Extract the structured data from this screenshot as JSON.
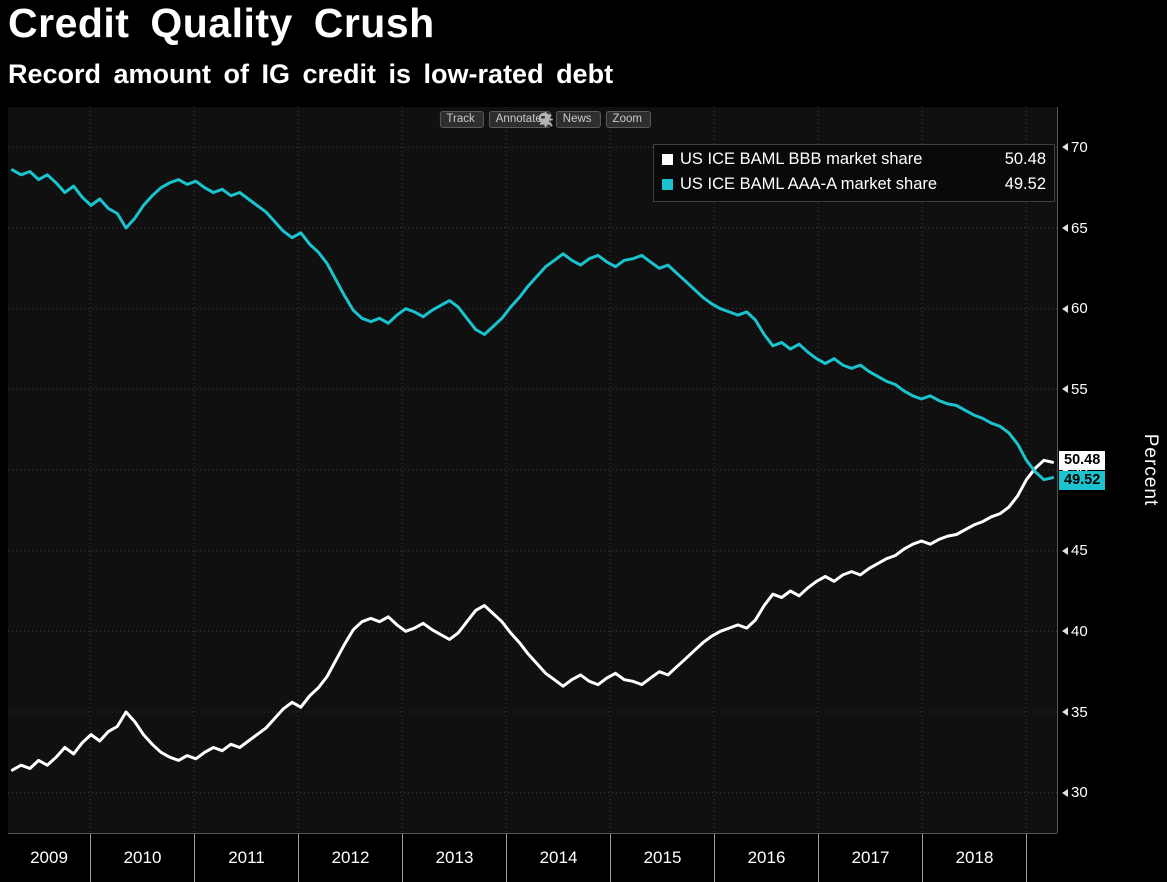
{
  "header": {
    "title": "Credit Quality Crush",
    "subtitle": "Record amount of IG credit is low-rated debt"
  },
  "toolbar": {
    "buttons": [
      {
        "label": "Track",
        "icon": "track-crosshair-icon"
      },
      {
        "label": "Annotate",
        "icon": "annotate-pencil-icon"
      },
      {
        "label": "News",
        "icon": "news-lines-icon"
      },
      {
        "label": "Zoom",
        "icon": "zoom-magnifier-icon"
      }
    ]
  },
  "colors": {
    "background": "#000000",
    "plot_background": "#101010",
    "grid": "#3c3c3c",
    "bbb_line": "#ffffff",
    "aaa_line": "#1bc3ce"
  },
  "chart_data": {
    "type": "line",
    "title": "Credit Quality Crush",
    "subtitle": "Record amount of IG credit is low-rated debt",
    "ylabel": "Percent",
    "grid": "dotted",
    "legend_position": "top-right",
    "x_note": "monthly points from 2009-01 to 2018-12",
    "x_range": [
      2009,
      2019
    ],
    "y_range": [
      27.5,
      72.5
    ],
    "y_ticks": [
      30,
      35,
      40,
      45,
      50,
      55,
      60,
      65,
      70
    ],
    "x_tick_years": [
      "2009",
      "2010",
      "2011",
      "2012",
      "2013",
      "2014",
      "2015",
      "2016",
      "2017",
      "2018"
    ],
    "series": [
      {
        "name": "US ICE BAML BBB market share",
        "value_label": "50.48",
        "last_value": 50.48,
        "color": "#ffffff",
        "values": [
          31.4,
          31.7,
          31.5,
          32.0,
          31.7,
          32.2,
          32.8,
          32.4,
          33.1,
          33.6,
          33.2,
          33.8,
          34.1,
          35.0,
          34.4,
          33.6,
          33.0,
          32.5,
          32.2,
          32.0,
          32.3,
          32.1,
          32.5,
          32.8,
          32.6,
          33.0,
          32.8,
          33.2,
          33.6,
          34.0,
          34.6,
          35.2,
          35.6,
          35.3,
          36.0,
          36.5,
          37.2,
          38.2,
          39.2,
          40.1,
          40.6,
          40.8,
          40.6,
          40.9,
          40.4,
          40.0,
          40.2,
          40.5,
          40.1,
          39.8,
          39.5,
          39.9,
          40.6,
          41.3,
          41.6,
          41.1,
          40.6,
          39.9,
          39.3,
          38.6,
          38.0,
          37.4,
          37.0,
          36.6,
          37.0,
          37.3,
          36.9,
          36.7,
          37.1,
          37.4,
          37.0,
          36.9,
          36.7,
          37.1,
          37.5,
          37.3,
          37.8,
          38.3,
          38.8,
          39.3,
          39.7,
          40.0,
          40.2,
          40.4,
          40.2,
          40.7,
          41.6,
          42.3,
          42.1,
          42.5,
          42.2,
          42.7,
          43.1,
          43.4,
          43.1,
          43.5,
          43.7,
          43.5,
          43.9,
          44.2,
          44.5,
          44.7,
          45.1,
          45.4,
          45.6,
          45.4,
          45.7,
          45.9,
          46.0,
          46.3,
          46.6,
          46.8,
          47.1,
          47.3,
          47.7,
          48.4,
          49.4,
          50.1,
          50.6,
          50.48
        ]
      },
      {
        "name": "US ICE BAML AAA-A market share",
        "value_label": "49.52",
        "last_value": 49.52,
        "color": "#1bc3ce",
        "values": [
          68.6,
          68.3,
          68.5,
          68.0,
          68.3,
          67.8,
          67.2,
          67.6,
          66.9,
          66.4,
          66.8,
          66.2,
          65.9,
          65.0,
          65.6,
          66.4,
          67.0,
          67.5,
          67.8,
          68.0,
          67.7,
          67.9,
          67.5,
          67.2,
          67.4,
          67.0,
          67.2,
          66.8,
          66.4,
          66.0,
          65.4,
          64.8,
          64.4,
          64.7,
          64.0,
          63.5,
          62.8,
          61.8,
          60.8,
          59.9,
          59.4,
          59.2,
          59.4,
          59.1,
          59.6,
          60.0,
          59.8,
          59.5,
          59.9,
          60.2,
          60.5,
          60.1,
          59.4,
          58.7,
          58.4,
          58.9,
          59.4,
          60.1,
          60.7,
          61.4,
          62.0,
          62.6,
          63.0,
          63.4,
          63.0,
          62.7,
          63.1,
          63.3,
          62.9,
          62.6,
          63.0,
          63.1,
          63.3,
          62.9,
          62.5,
          62.7,
          62.2,
          61.7,
          61.2,
          60.7,
          60.3,
          60.0,
          59.8,
          59.6,
          59.8,
          59.3,
          58.4,
          57.7,
          57.9,
          57.5,
          57.8,
          57.3,
          56.9,
          56.6,
          56.9,
          56.5,
          56.3,
          56.5,
          56.1,
          55.8,
          55.5,
          55.3,
          54.9,
          54.6,
          54.4,
          54.6,
          54.3,
          54.1,
          54.0,
          53.7,
          53.4,
          53.2,
          52.9,
          52.7,
          52.3,
          51.6,
          50.6,
          49.9,
          49.4,
          49.52
        ]
      }
    ]
  }
}
